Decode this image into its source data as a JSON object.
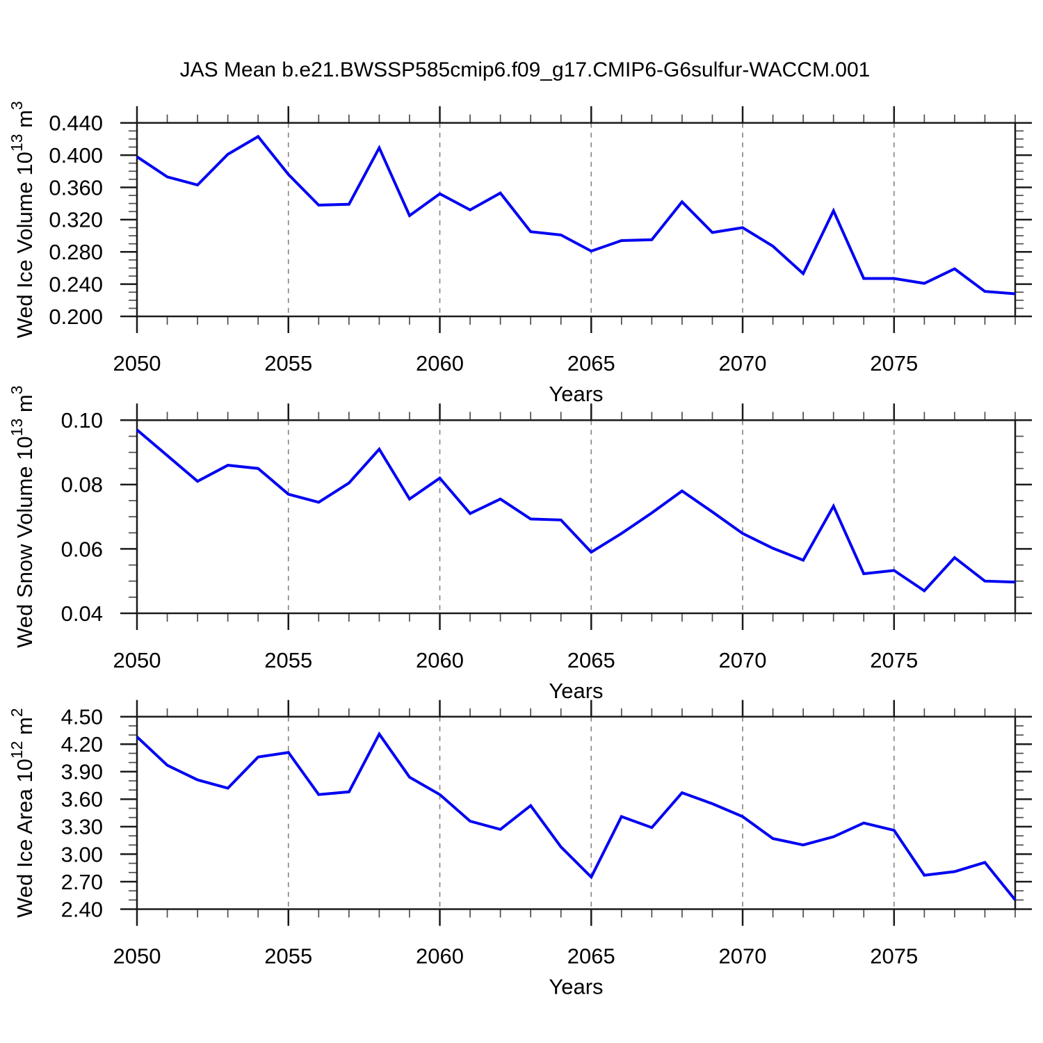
{
  "title": "JAS Mean b.e21.BWSSP585cmip6.f09_g17.CMIP6-G6sulfur-WACCM.001",
  "colors": {
    "line": "#0000f2",
    "axis": "#1a1a1a",
    "minor_tick": "#4d4d4d",
    "grid": "#888888",
    "text": "#000000"
  },
  "x_axis": {
    "label": "Years",
    "range": [
      2050,
      2079
    ],
    "major_ticks": [
      2050,
      2055,
      2060,
      2065,
      2070,
      2075
    ],
    "minor_step": 1,
    "gridline_years": [
      2055,
      2060,
      2065,
      2070,
      2075
    ]
  },
  "years": [
    2050,
    2051,
    2052,
    2053,
    2054,
    2055,
    2056,
    2057,
    2058,
    2059,
    2060,
    2061,
    2062,
    2063,
    2064,
    2065,
    2066,
    2067,
    2068,
    2069,
    2070,
    2071,
    2072,
    2073,
    2074,
    2075,
    2076,
    2077,
    2078,
    2079
  ],
  "chart_data": [
    {
      "type": "line",
      "name": "wed-ice-volume",
      "title": "",
      "ylabel_text": "Wed Ice Volume 10^13 m^3",
      "ylabel_parts": [
        [
          "Wed Ice Volume 10",
          false
        ],
        [
          "13",
          true
        ],
        [
          " m",
          false
        ],
        [
          "3",
          true
        ]
      ],
      "xlabel": "Years",
      "ylim": [
        0.2,
        0.44
      ],
      "ytick_major": 0.04,
      "ytick_minor": 0.01,
      "ytick_decimals": 3,
      "x": [
        2050,
        2051,
        2052,
        2053,
        2054,
        2055,
        2056,
        2057,
        2058,
        2059,
        2060,
        2061,
        2062,
        2063,
        2064,
        2065,
        2066,
        2067,
        2068,
        2069,
        2070,
        2071,
        2072,
        2073,
        2074,
        2075,
        2076,
        2077,
        2078,
        2079
      ],
      "values": [
        0.398,
        0.373,
        0.363,
        0.401,
        0.423,
        0.376,
        0.338,
        0.339,
        0.409,
        0.325,
        0.352,
        0.332,
        0.353,
        0.305,
        0.301,
        0.281,
        0.294,
        0.295,
        0.342,
        0.304,
        0.31,
        0.287,
        0.253,
        0.331,
        0.247,
        0.247,
        0.241,
        0.259,
        0.231,
        0.228
      ]
    },
    {
      "type": "line",
      "name": "wed-snow-volume",
      "title": "",
      "ylabel_text": "Wed Snow Volume 10^13 m^3",
      "ylabel_parts": [
        [
          "Wed Snow Volume 10",
          false
        ],
        [
          "13",
          true
        ],
        [
          " m",
          false
        ],
        [
          "3",
          true
        ]
      ],
      "xlabel": "Years",
      "ylim": [
        0.04,
        0.1
      ],
      "ytick_major": 0.02,
      "ytick_minor": 0.005,
      "ytick_decimals": 2,
      "x": [
        2050,
        2051,
        2052,
        2053,
        2054,
        2055,
        2056,
        2057,
        2058,
        2059,
        2060,
        2061,
        2062,
        2063,
        2064,
        2065,
        2066,
        2067,
        2068,
        2069,
        2070,
        2071,
        2072,
        2073,
        2074,
        2075,
        2076,
        2077,
        2078,
        2079
      ],
      "values": [
        0.097,
        0.089,
        0.081,
        0.086,
        0.085,
        0.077,
        0.0745,
        0.0805,
        0.091,
        0.0755,
        0.082,
        0.071,
        0.0755,
        0.0693,
        0.069,
        0.059,
        0.0648,
        0.0712,
        0.078,
        0.0715,
        0.0648,
        0.0602,
        0.0565,
        0.0733,
        0.0523,
        0.0533,
        0.047,
        0.0573,
        0.05,
        0.0497
      ]
    },
    {
      "type": "line",
      "name": "wed-ice-area",
      "title": "",
      "ylabel_text": "Wed Ice Area 10^12 m^2",
      "ylabel_parts": [
        [
          "Wed Ice Area 10",
          false
        ],
        [
          "12",
          true
        ],
        [
          " m",
          false
        ],
        [
          "2",
          true
        ]
      ],
      "xlabel": "Years",
      "ylim": [
        2.4,
        4.5
      ],
      "ytick_major": 0.3,
      "ytick_minor": 0.1,
      "ytick_decimals": 2,
      "x": [
        2050,
        2051,
        2052,
        2053,
        2054,
        2055,
        2056,
        2057,
        2058,
        2059,
        2060,
        2061,
        2062,
        2063,
        2064,
        2065,
        2066,
        2067,
        2068,
        2069,
        2070,
        2071,
        2072,
        2073,
        2074,
        2075,
        2076,
        2077,
        2078,
        2079
      ],
      "values": [
        4.28,
        3.97,
        3.81,
        3.72,
        4.06,
        4.11,
        3.65,
        3.68,
        4.31,
        3.84,
        3.65,
        3.36,
        3.27,
        3.53,
        3.08,
        2.75,
        3.41,
        3.29,
        3.67,
        3.55,
        3.41,
        3.17,
        3.1,
        3.19,
        3.34,
        3.26,
        2.77,
        2.81,
        2.91,
        2.5
      ]
    }
  ]
}
